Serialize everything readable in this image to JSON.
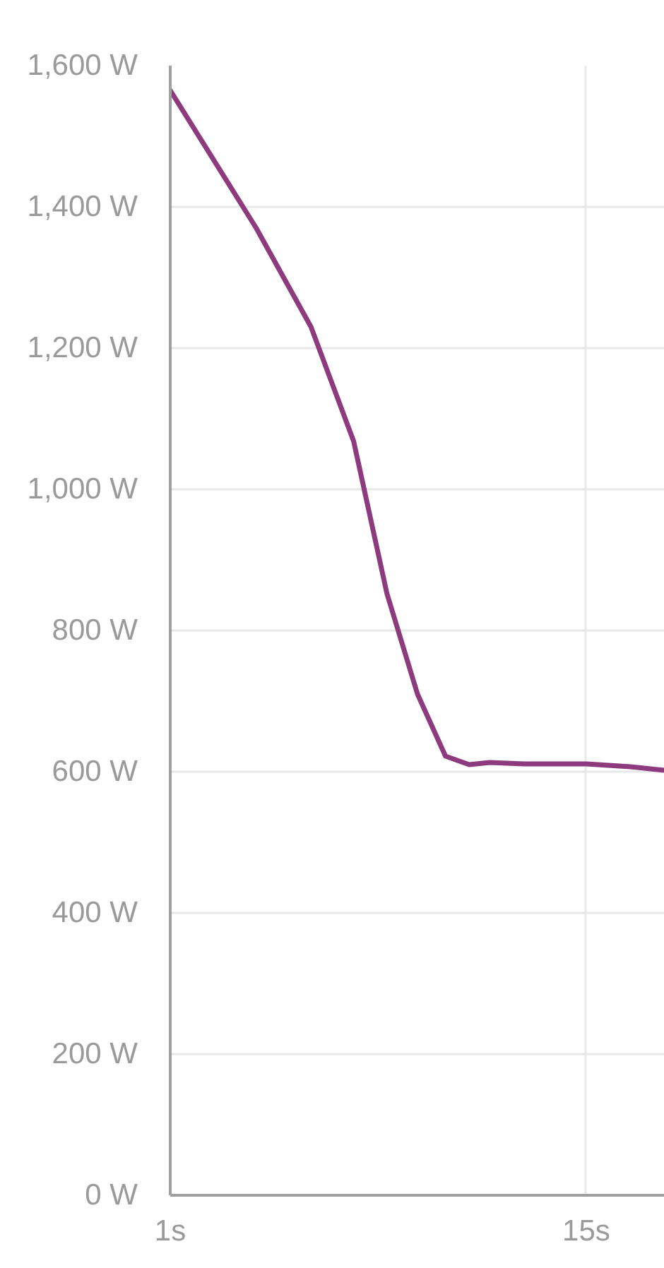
{
  "chart_data": {
    "type": "line",
    "log": "x",
    "grid": true,
    "line_style": "solid",
    "color": "#8e3a7e",
    "x": [
      1,
      1.75,
      2.5,
      3.3,
      4.1,
      5,
      6,
      7,
      8,
      10,
      15,
      20,
      25
    ],
    "values": [
      1565,
      1370,
      1230,
      1068,
      852,
      710,
      622,
      610,
      613,
      611,
      611,
      607,
      602
    ],
    "xlim": [
      1,
      25
    ],
    "ylim": [
      0,
      1600
    ],
    "xticks": [
      {
        "value": 1,
        "label": "1s"
      },
      {
        "value": 15,
        "label": "15s"
      }
    ],
    "yticks": [
      {
        "value": 0,
        "label": "0 W"
      },
      {
        "value": 200,
        "label": "200 W"
      },
      {
        "value": 400,
        "label": "400 W"
      },
      {
        "value": 600,
        "label": "600 W"
      },
      {
        "value": 800,
        "label": "800 W"
      },
      {
        "value": 1000,
        "label": "1,000 W"
      },
      {
        "value": 1200,
        "label": "1,200 W"
      },
      {
        "value": 1400,
        "label": "1,400 W"
      },
      {
        "value": 1600,
        "label": "1,600 W"
      }
    ]
  }
}
